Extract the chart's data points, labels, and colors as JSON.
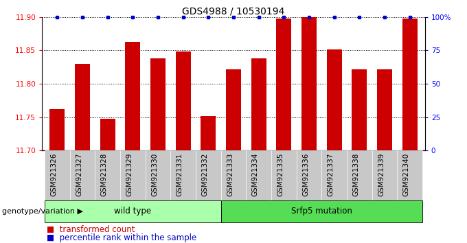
{
  "title": "GDS4988 / 10530194",
  "samples": [
    "GSM921326",
    "GSM921327",
    "GSM921328",
    "GSM921329",
    "GSM921330",
    "GSM921331",
    "GSM921332",
    "GSM921333",
    "GSM921334",
    "GSM921335",
    "GSM921336",
    "GSM921337",
    "GSM921338",
    "GSM921339",
    "GSM921340"
  ],
  "values": [
    11.762,
    11.83,
    11.748,
    11.863,
    11.838,
    11.848,
    11.752,
    11.822,
    11.838,
    11.898,
    11.9,
    11.852,
    11.822,
    11.822,
    11.898
  ],
  "bar_color": "#cc0000",
  "dot_color": "#0000cc",
  "ymin": 11.7,
  "ymax": 11.9,
  "yticks": [
    11.7,
    11.75,
    11.8,
    11.85,
    11.9
  ],
  "right_yticks": [
    0,
    25,
    50,
    75,
    100
  ],
  "right_yticklabels": [
    "0",
    "25",
    "50",
    "75",
    "100%"
  ],
  "groups": [
    {
      "label": "wild type",
      "start": 0,
      "end": 7,
      "color": "#aaffaa"
    },
    {
      "label": "Srfp5 mutation",
      "start": 7,
      "end": 15,
      "color": "#55dd55"
    }
  ],
  "xlabel_group": "genotype/variation",
  "title_fontsize": 10,
  "tick_fontsize": 7.5,
  "label_fontsize": 8.5,
  "bar_width": 0.6,
  "xlim_left": -0.6,
  "xlim_right": 14.6
}
